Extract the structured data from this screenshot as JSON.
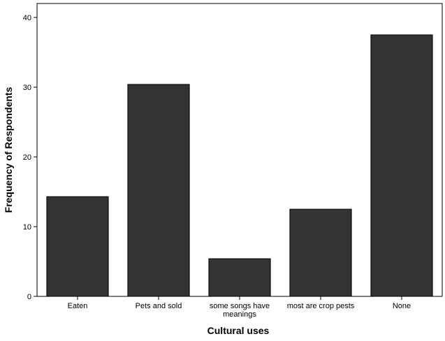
{
  "chart_data": {
    "type": "bar",
    "title": "",
    "xlabel": "Cultural uses",
    "ylabel": "Frequency of Respondents",
    "categories": [
      [
        "Eaten"
      ],
      [
        "Pets and sold"
      ],
      [
        "some songs have",
        "meanings"
      ],
      [
        "most are crop pests"
      ],
      [
        "None"
      ]
    ],
    "values": [
      14.3,
      30.4,
      5.4,
      12.5,
      37.5
    ],
    "ylim": [
      0,
      42
    ],
    "yticks": [
      0,
      10,
      20,
      30,
      40
    ],
    "grid": false,
    "legend": "none",
    "colors": {
      "bar": "#333333",
      "bar_stroke": "#000000",
      "axis": "#000000",
      "background": "#ffffff"
    }
  }
}
